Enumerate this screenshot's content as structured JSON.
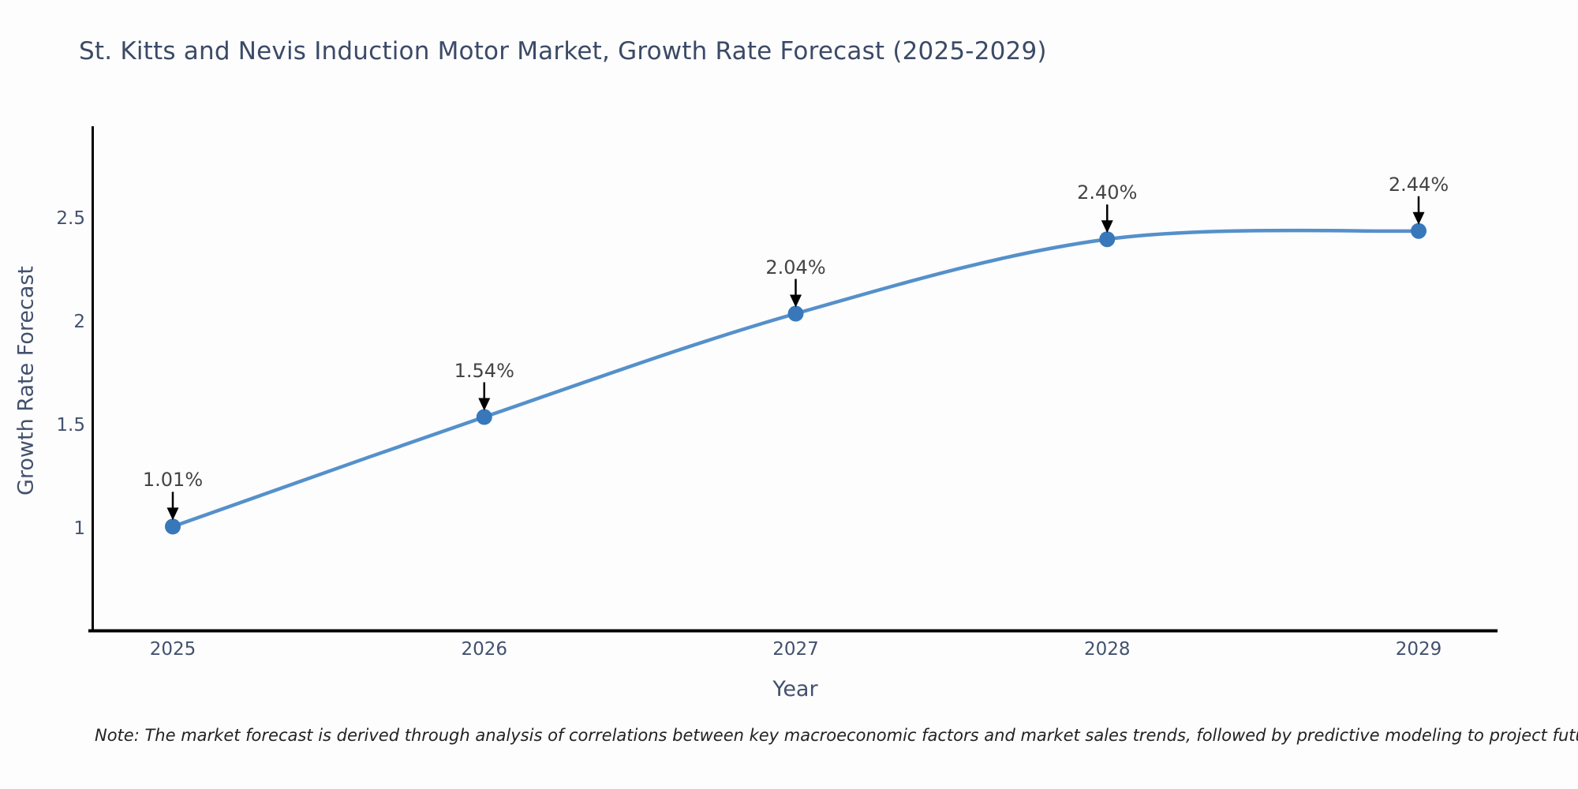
{
  "title": "St. Kitts and Nevis Induction Motor Market, Growth Rate Forecast (2025-2029)",
  "note": "Note: The market forecast is derived through analysis of correlations between key macroeconomic factors and market sales trends, followed by predictive modeling to project future sales",
  "chart_data": {
    "type": "line",
    "title": "St. Kitts and Nevis Induction Motor Market, Growth Rate Forecast (2025-2029)",
    "xlabel": "Year",
    "ylabel": "Growth Rate Forecast",
    "x": [
      2025,
      2026,
      2027,
      2028,
      2029
    ],
    "xticklabels": [
      "2025",
      "2026",
      "2027",
      "2028",
      "2029"
    ],
    "series": [
      {
        "name": "Growth Rate Forecast",
        "values": [
          1.01,
          1.54,
          2.04,
          2.4,
          2.44
        ]
      }
    ],
    "point_labels": [
      "1.01%",
      "1.54%",
      "2.04%",
      "2.40%",
      "2.44%"
    ],
    "yticks": [
      1,
      1.5,
      2,
      2.5
    ],
    "yticklabels": [
      "1",
      "1.5",
      "2",
      "2.5"
    ],
    "ylim": [
      0.5,
      2.95
    ],
    "line_shape": "spline",
    "grid": false,
    "legend_position": "none",
    "colors": {
      "line": "#5590ca",
      "marker": "#3878ba",
      "axis": "#000000",
      "arrow": "#000000",
      "tick_text": "#42516d",
      "axis_title_text": "#42516d",
      "title_text": "#3b4a66",
      "annotation_text": "#444444",
      "note_text": "#222222",
      "background": "#fdfdfe"
    }
  }
}
